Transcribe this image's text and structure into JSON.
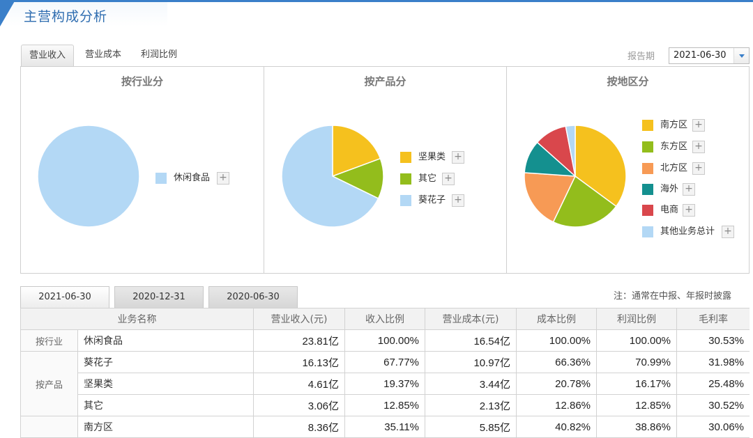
{
  "header": {
    "title": "主营构成分析"
  },
  "tabs": [
    {
      "label": "营业收入",
      "active": true
    },
    {
      "label": "营业成本",
      "active": false
    },
    {
      "label": "利润比例",
      "active": false
    }
  ],
  "report_period": {
    "label": "报告期",
    "value": "2021-06-30"
  },
  "panels": {
    "industry": {
      "title": "按行业分",
      "legend": [
        {
          "label": "休闲食品",
          "color": "#b3d8f5"
        }
      ]
    },
    "product": {
      "title": "按产品分",
      "legend": [
        {
          "label": "坚果类",
          "color": "#f5c11e"
        },
        {
          "label": "其它",
          "color": "#93bd1c"
        },
        {
          "label": "葵花子",
          "color": "#b3d8f5"
        }
      ]
    },
    "region": {
      "title": "按地区分",
      "legend": [
        {
          "label": "南方区",
          "color": "#f5c11e"
        },
        {
          "label": "东方区",
          "color": "#93bd1c"
        },
        {
          "label": "北方区",
          "color": "#f79a55"
        },
        {
          "label": "海外",
          "color": "#14908f"
        },
        {
          "label": "电商",
          "color": "#d9474c"
        },
        {
          "label": "其他业务总计",
          "color": "#b3d8f5"
        }
      ]
    },
    "plus_icon": "+"
  },
  "chart_data": [
    {
      "type": "pie",
      "title": "按行业分",
      "labels": [
        "休闲食品"
      ],
      "values": [
        100.0
      ],
      "colors": [
        "#b3d8f5"
      ]
    },
    {
      "type": "pie",
      "title": "按产品分",
      "labels": [
        "坚果类",
        "其它",
        "葵花子"
      ],
      "values": [
        19.37,
        12.85,
        67.77
      ],
      "colors": [
        "#f5c11e",
        "#93bd1c",
        "#b3d8f5"
      ]
    },
    {
      "type": "pie",
      "title": "按地区分",
      "labels": [
        "南方区",
        "东方区",
        "北方区",
        "海外",
        "电商",
        "其他业务总计"
      ],
      "values": [
        35.11,
        22.0,
        19.0,
        10.5,
        10.4,
        3.0
      ],
      "colors": [
        "#f5c11e",
        "#93bd1c",
        "#f79a55",
        "#14908f",
        "#d9474c",
        "#b3d8f5"
      ]
    }
  ],
  "date_tabs": [
    {
      "label": "2021-06-30",
      "active": true
    },
    {
      "label": "2020-12-31",
      "active": false
    },
    {
      "label": "2020-06-30",
      "active": false
    }
  ],
  "note": "注：通常在中报、年报时披露",
  "table": {
    "headers": [
      "业务名称",
      "营业收入(元)",
      "收入比例",
      "营业成本(元)",
      "成本比例",
      "利润比例",
      "毛利率"
    ],
    "groups": [
      {
        "label": "按行业",
        "rows": [
          [
            "休闲食品",
            "23.81亿",
            "100.00%",
            "16.54亿",
            "100.00%",
            "100.00%",
            "30.53%"
          ]
        ]
      },
      {
        "label": "按产品",
        "rows": [
          [
            "葵花子",
            "16.13亿",
            "67.77%",
            "10.97亿",
            "66.36%",
            "70.99%",
            "31.98%"
          ],
          [
            "坚果类",
            "4.61亿",
            "19.37%",
            "3.44亿",
            "20.78%",
            "16.17%",
            "25.48%"
          ],
          [
            "其它",
            "3.06亿",
            "12.85%",
            "2.13亿",
            "12.86%",
            "12.85%",
            "30.52%"
          ]
        ]
      },
      {
        "label": "",
        "rows": [
          [
            "南方区",
            "8.36亿",
            "35.11%",
            "5.85亿",
            "40.82%",
            "38.86%",
            "30.06%"
          ]
        ]
      }
    ]
  }
}
